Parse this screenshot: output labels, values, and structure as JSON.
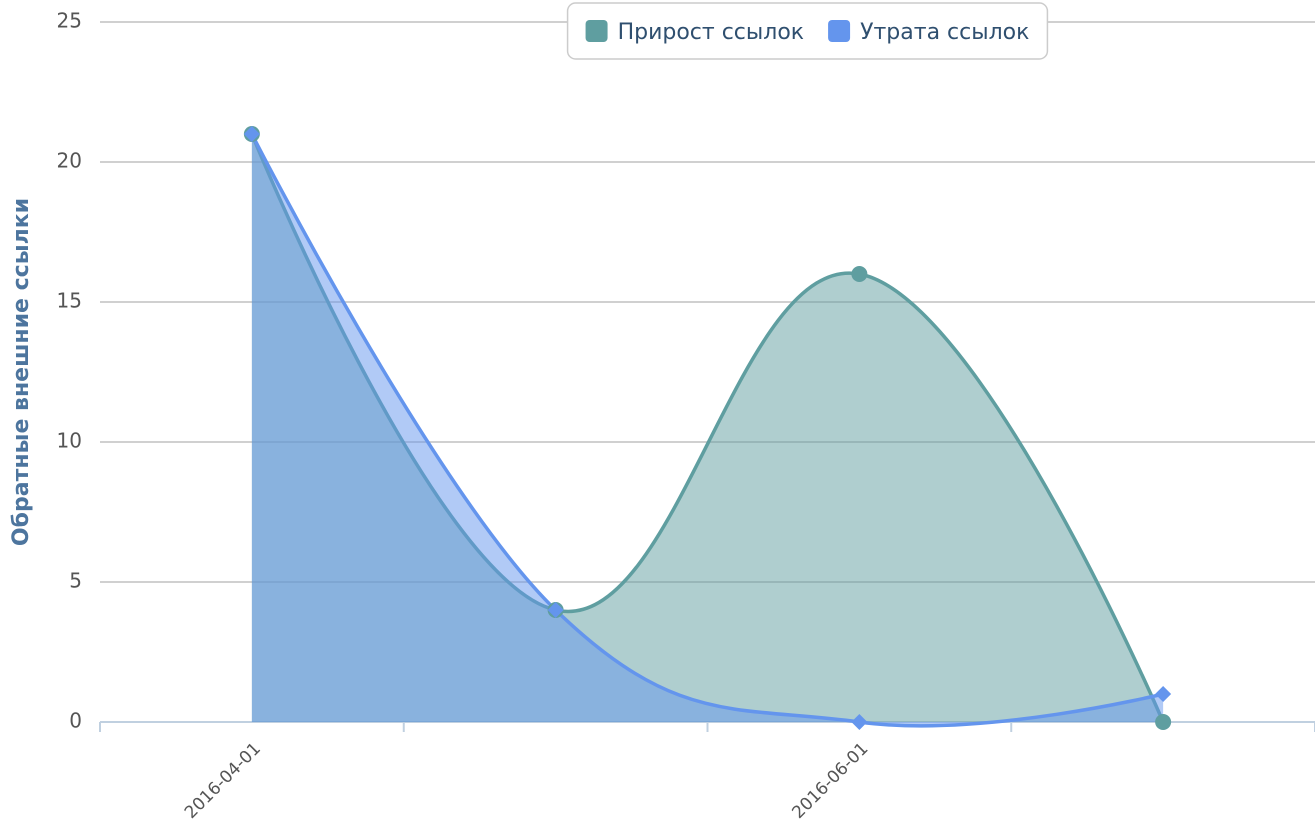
{
  "chart_data": {
    "type": "areaspline",
    "y_label": "Обратные внешние ссылки",
    "categories": [
      "2016-04-01",
      null,
      "2016-06-01",
      null
    ],
    "series": [
      {
        "name": "Прирост ссылок",
        "color": "#5f9ea0",
        "marker": "circle",
        "values": [
          21,
          4,
          16,
          0
        ]
      },
      {
        "name": "Утрата ссылок",
        "color": "#6495ed",
        "marker": "diamond",
        "values": [
          21,
          4,
          0,
          1
        ]
      }
    ],
    "ylim": [
      0,
      25
    ],
    "yticks": [
      0,
      5,
      10,
      15,
      20,
      25
    ],
    "grid": true,
    "legend": "top"
  }
}
